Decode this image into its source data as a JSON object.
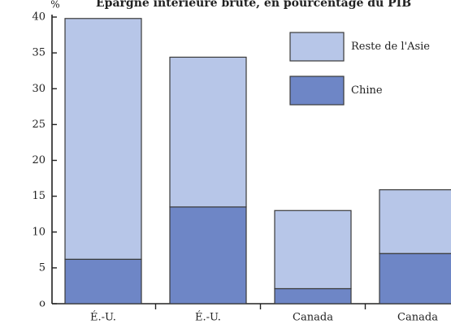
{
  "chart_data": {
    "type": "bar",
    "stacked": true,
    "title": "Épargne intérieure brute, en pourcentage du PIB",
    "ylabel": "%",
    "xlabel": "",
    "ylim": [
      0,
      40
    ],
    "yticks": [
      0,
      5,
      10,
      15,
      20,
      25,
      30,
      35,
      40
    ],
    "ytick_labels": [
      "o",
      "5",
      "10",
      "15",
      "20",
      "25",
      "30",
      "35",
      "40"
    ],
    "categories": [
      "É.-U.",
      "É.-U.",
      "Canada",
      "Canada"
    ],
    "series": [
      {
        "name": "Chine",
        "color": "#6e86c6",
        "values": [
          6.2,
          13.5,
          2.1,
          7.0
        ]
      },
      {
        "name": "Reste de l'Asie",
        "color": "#b7c6e8",
        "values": [
          33.6,
          20.9,
          10.9,
          8.9
        ]
      }
    ],
    "legend": {
      "position": "top-right",
      "order": [
        "Reste de l'Asie",
        "Chine"
      ]
    },
    "grid": false,
    "edge_color": "#3a3a3a"
  }
}
